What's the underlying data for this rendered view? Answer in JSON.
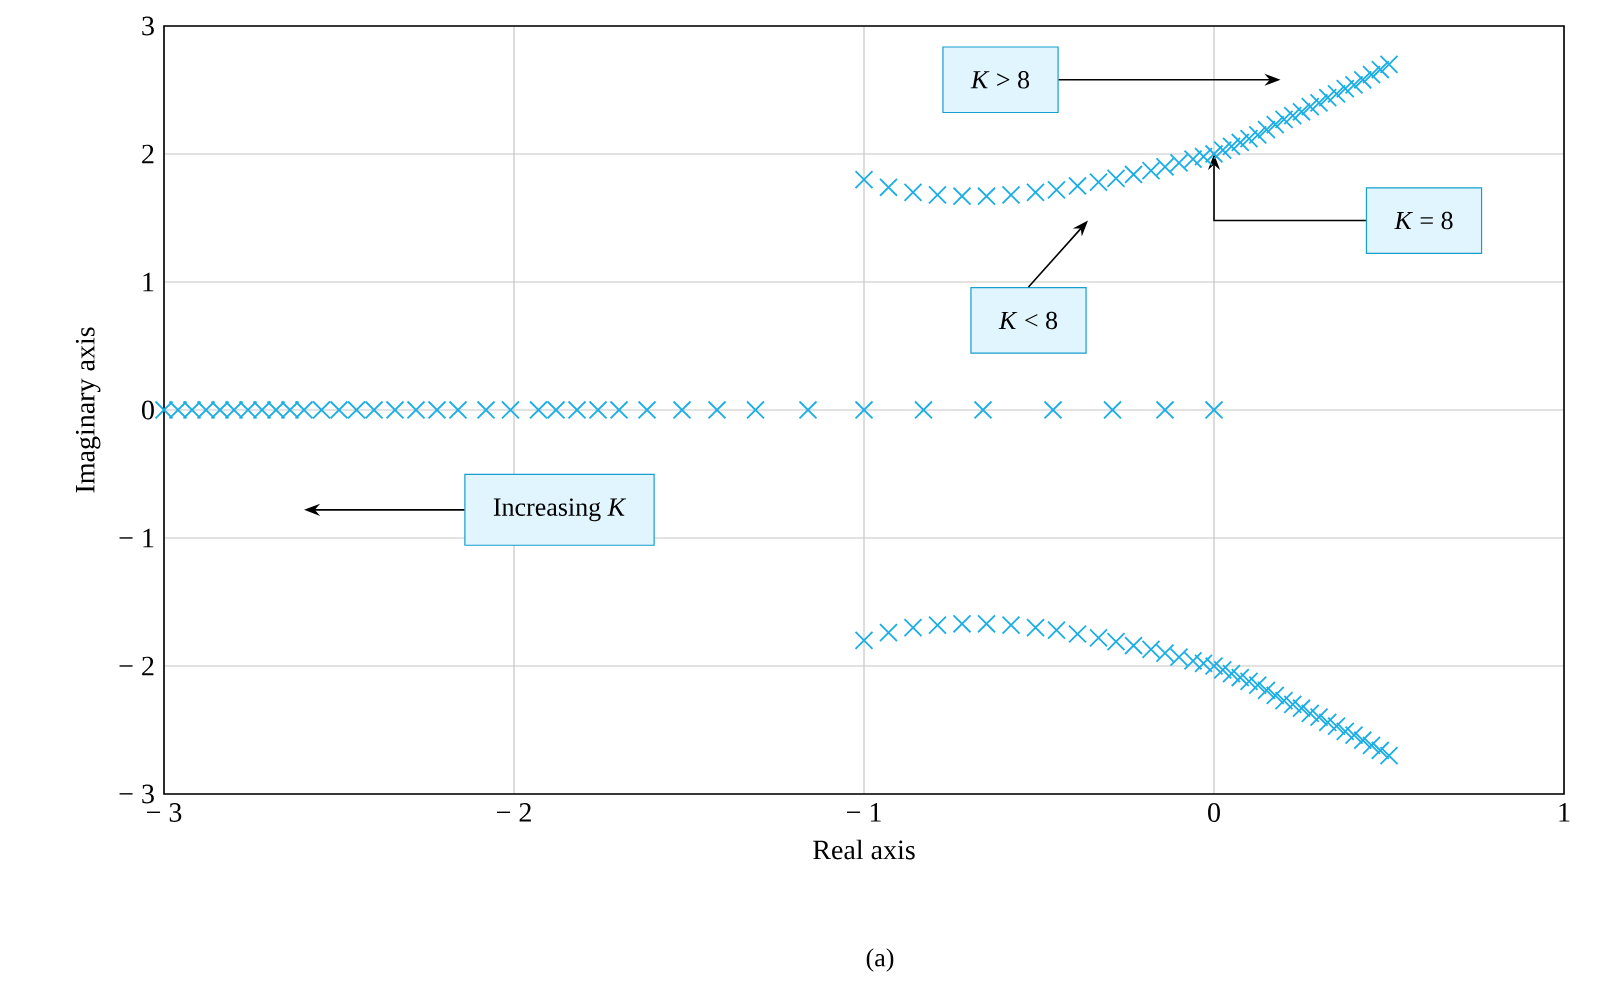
{
  "chart_data": {
    "type": "scatter",
    "xlabel": "Real axis",
    "ylabel": "Imaginary axis",
    "xlim": [
      -3,
      1
    ],
    "ylim": [
      -3,
      3
    ],
    "xticks": [
      {
        "value": -3,
        "label": "− 3"
      },
      {
        "value": -2,
        "label": "− 2"
      },
      {
        "value": -1,
        "label": "− 1"
      },
      0,
      1
    ],
    "yticks": [
      {
        "value": -3,
        "label": "− 3"
      },
      {
        "value": -2,
        "label": "− 2"
      },
      {
        "value": -1,
        "label": "− 1"
      },
      0,
      1,
      2,
      3
    ],
    "grid": true,
    "marker": "cross",
    "series": [
      {
        "color": "#1aaee5",
        "x": [
          0,
          -0.14,
          -0.29,
          -0.46,
          -0.66,
          -0.83,
          -1.0,
          -1.16,
          -1.31,
          -1.42,
          -1.52,
          -1.62,
          -1.7,
          -1.76,
          -1.82,
          -1.88,
          -1.93,
          -2.01,
          -2.08,
          -2.16,
          -2.22,
          -2.28,
          -2.34,
          -2.4,
          -2.45,
          -2.5,
          -2.55,
          -2.6,
          -2.64,
          -2.68,
          -2.72,
          -2.76,
          -2.8,
          -2.84,
          -2.88,
          -2.92,
          -2.96,
          -3.0
        ],
        "values": [
          0,
          0,
          0,
          0,
          0,
          0,
          0,
          0,
          0,
          0,
          0,
          0,
          0,
          0,
          0,
          0,
          0,
          0,
          0,
          0,
          0,
          0,
          0,
          0,
          0,
          0,
          0,
          0,
          0,
          0,
          0,
          0,
          0,
          0,
          0,
          0,
          0,
          0
        ]
      },
      {
        "color": "#1aaee5",
        "x": [
          -1.0,
          -0.93,
          -0.86,
          -0.79,
          -0.72,
          -0.65,
          -0.58,
          -0.51,
          -0.45,
          -0.39,
          -0.33,
          -0.28,
          -0.23,
          -0.18,
          -0.14,
          -0.1,
          -0.06,
          -0.03,
          0,
          0.025,
          0.05,
          0.075,
          0.1,
          0.125,
          0.15,
          0.175,
          0.2,
          0.225,
          0.25,
          0.275,
          0.3,
          0.325,
          0.35,
          0.375,
          0.4,
          0.425,
          0.45,
          0.475,
          0.5
        ],
        "values": [
          1.8,
          1.74,
          1.7,
          1.68,
          1.67,
          1.67,
          1.68,
          1.7,
          1.72,
          1.75,
          1.78,
          1.81,
          1.84,
          1.87,
          1.9,
          1.93,
          1.96,
          1.98,
          2.0,
          2.03,
          2.06,
          2.09,
          2.12,
          2.15,
          2.19,
          2.23,
          2.27,
          2.3,
          2.33,
          2.37,
          2.4,
          2.44,
          2.47,
          2.51,
          2.54,
          2.58,
          2.62,
          2.66,
          2.7
        ]
      },
      {
        "color": "#1aaee5",
        "x": [
          -1.0,
          -0.93,
          -0.86,
          -0.79,
          -0.72,
          -0.65,
          -0.58,
          -0.51,
          -0.45,
          -0.39,
          -0.33,
          -0.28,
          -0.23,
          -0.18,
          -0.14,
          -0.1,
          -0.06,
          -0.03,
          0,
          0.025,
          0.05,
          0.075,
          0.1,
          0.125,
          0.15,
          0.175,
          0.2,
          0.225,
          0.25,
          0.275,
          0.3,
          0.325,
          0.35,
          0.375,
          0.4,
          0.425,
          0.45,
          0.475,
          0.5
        ],
        "values": [
          -1.8,
          -1.74,
          -1.7,
          -1.68,
          -1.67,
          -1.67,
          -1.68,
          -1.7,
          -1.72,
          -1.75,
          -1.78,
          -1.81,
          -1.84,
          -1.87,
          -1.9,
          -1.93,
          -1.96,
          -1.98,
          -2.0,
          -2.03,
          -2.06,
          -2.09,
          -2.12,
          -2.15,
          -2.19,
          -2.23,
          -2.27,
          -2.3,
          -2.33,
          -2.37,
          -2.4,
          -2.44,
          -2.47,
          -2.51,
          -2.54,
          -2.58,
          -2.62,
          -2.66,
          -2.7
        ]
      }
    ],
    "annotations": [
      "*K* > 8",
      {
        "text": "*K* = 8",
        "x": 0,
        "y": 2.0
      },
      "*K* < 8",
      "Increasing *K*",
      "(a)"
    ]
  }
}
